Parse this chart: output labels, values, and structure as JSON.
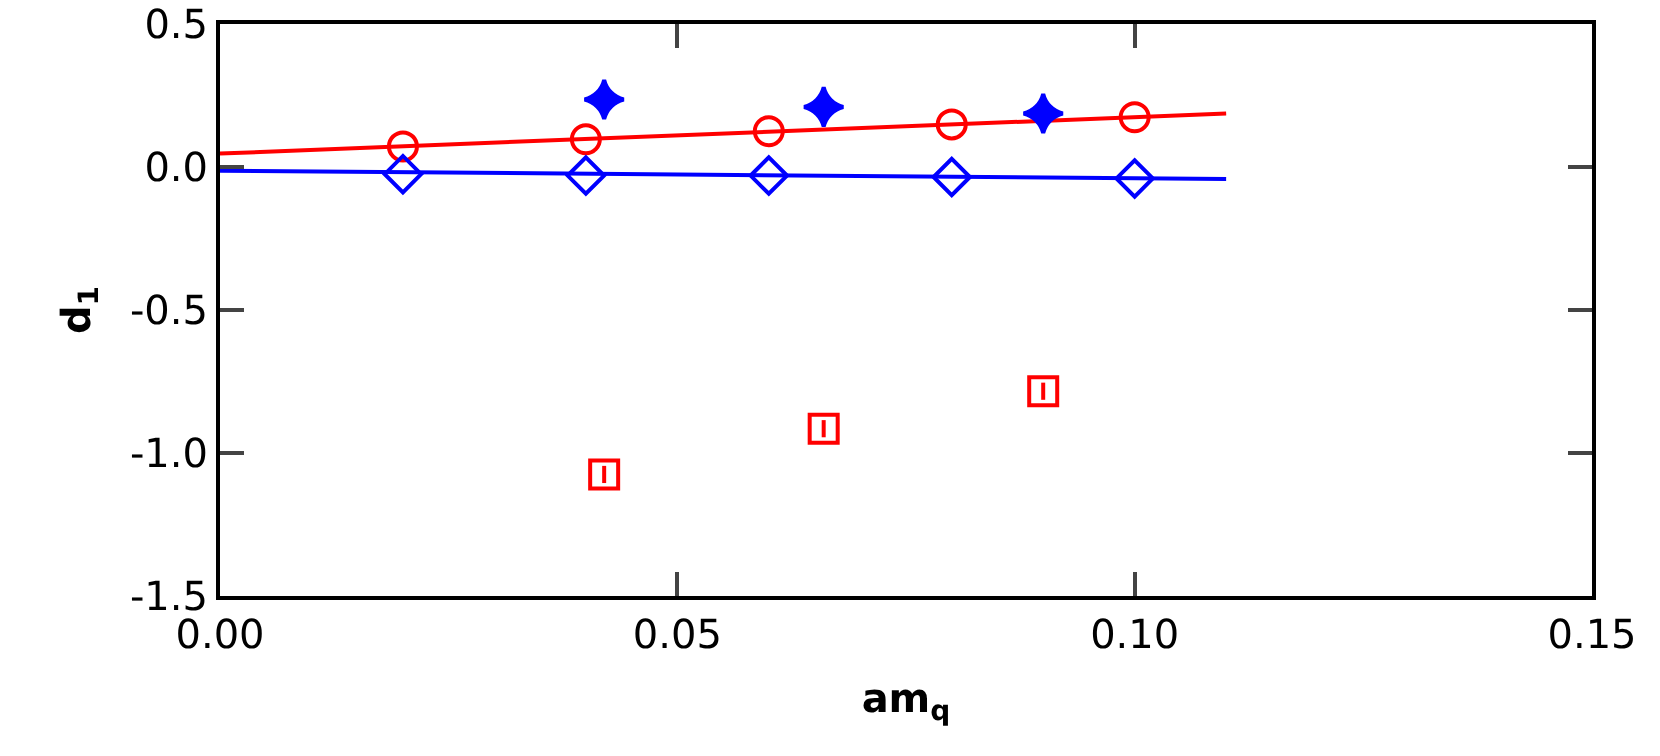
{
  "chart_data": {
    "type": "scatter",
    "xlabel": "am$_{q}$",
    "ylabel": "d$_{1}$",
    "xlim": [
      0,
      0.15
    ],
    "ylim": [
      -1.5,
      0.5
    ],
    "xticks": [
      {
        "value": 0,
        "label": "0.00"
      },
      {
        "value": 0.05,
        "label": "0.05"
      },
      {
        "value": 0.1,
        "label": "0.10"
      },
      {
        "value": 0.15,
        "label": "0.15"
      }
    ],
    "yticks": [
      {
        "value": -1.5,
        "label": "-1.5"
      },
      {
        "value": -1,
        "label": "-1.0"
      },
      {
        "value": -0.5,
        "label": "-0.5"
      },
      {
        "value": 0,
        "label": "0.0"
      },
      {
        "value": 0.5,
        "label": "0.5"
      }
    ],
    "grid": false,
    "series": [
      {
        "marker": "circle",
        "color": "#ff0000",
        "x": [
          0.02,
          0.04,
          0.06,
          0.08,
          0.1
        ],
        "values": [
          0.072,
          0.097,
          0.125,
          0.149,
          0.174
        ]
      },
      {
        "marker": "diamond",
        "color": "#0000ff",
        "x": [
          0.02,
          0.04,
          0.06,
          0.08,
          0.1
        ],
        "values": [
          -0.025,
          -0.03,
          -0.03,
          -0.035,
          -0.04
        ]
      },
      {
        "type": "line",
        "marker": "none",
        "color": "#ff0000",
        "x": [
          0,
          0.11
        ],
        "values": [
          0.047,
          0.187
        ]
      },
      {
        "type": "line",
        "marker": "none",
        "color": "#0000ff",
        "x": [
          0,
          0.11
        ],
        "values": [
          -0.013,
          -0.042
        ]
      },
      {
        "marker": "star",
        "color": "#0000ff",
        "x": [
          0.042,
          0.066,
          0.09
        ],
        "values": [
          0.236,
          0.21,
          0.187
        ],
        "errors": [
          0.03,
          0.03,
          0.03
        ]
      },
      {
        "marker": "square",
        "color": "#ff0000",
        "x": [
          0.042,
          0.066,
          0.09
        ],
        "values": [
          -1.075,
          -0.915,
          -0.784
        ],
        "errors": [
          0.03,
          0.03,
          0.03
        ]
      }
    ]
  }
}
